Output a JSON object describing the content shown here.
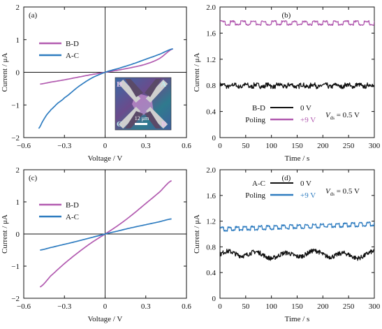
{
  "colors": {
    "purple": "#b25bb0",
    "blue": "#2e7cc0",
    "black": "#111111"
  },
  "chart_data": [
    {
      "panel": "(a)",
      "type": "line",
      "xlabel": "Voltage / V",
      "ylabel": "Current / μA",
      "xlim": [
        -0.6,
        0.6
      ],
      "ylim": [
        -2,
        2
      ],
      "xticks": [
        -0.6,
        -0.3,
        0,
        0.3,
        0.6
      ],
      "yticks": [
        -2,
        -1,
        0,
        1,
        2
      ],
      "xtick_labels": [
        "−0.6",
        "−0.3",
        "0",
        "0.3",
        "0.6"
      ],
      "ytick_labels": [
        "−2",
        "−1",
        "0",
        "1",
        "2"
      ],
      "legend_position": "top-left",
      "inset": {
        "labels": [
          "D",
          "A",
          "C",
          "B"
        ],
        "scale_bar": "12 μm"
      },
      "series": [
        {
          "name": "B-D",
          "color": "#b25bb0",
          "x": [
            -0.48,
            -0.4,
            -0.3,
            -0.2,
            -0.1,
            0,
            0.1,
            0.2,
            0.3,
            0.4,
            0.5
          ],
          "y": [
            -0.36,
            -0.3,
            -0.23,
            -0.15,
            -0.07,
            0,
            0.07,
            0.15,
            0.25,
            0.42,
            0.72
          ]
        },
        {
          "name": "A-C",
          "color": "#2e7cc0",
          "x": [
            -0.49,
            -0.46,
            -0.43,
            -0.4,
            -0.35,
            -0.3,
            -0.2,
            -0.1,
            0,
            0.1,
            0.2,
            0.3,
            0.4,
            0.5
          ],
          "y": [
            -1.72,
            -1.5,
            -1.3,
            -1.15,
            -0.95,
            -0.78,
            -0.45,
            -0.18,
            0,
            0.12,
            0.25,
            0.4,
            0.55,
            0.72
          ]
        }
      ]
    },
    {
      "panel": "(b)",
      "type": "line",
      "xlabel": "Time / s",
      "ylabel": "Current / μA",
      "xlim": [
        0,
        300
      ],
      "ylim": [
        0,
        2.0
      ],
      "xticks": [
        0,
        50,
        100,
        150,
        200,
        250,
        300
      ],
      "yticks": [
        0,
        0.4,
        0.8,
        1.2,
        1.6,
        2.0
      ],
      "xtick_labels": [
        "0",
        "50",
        "100",
        "150",
        "200",
        "250",
        "300"
      ],
      "ytick_labels": [
        "0",
        "0.4",
        "0.8",
        "1.2",
        "1.6",
        "2.0"
      ],
      "legend_position": "bottom-left",
      "legend_header": "B-D",
      "annotation": {
        "symbol": "V",
        "subscript": "ds",
        "value": " = 0.5 V"
      },
      "series": [
        {
          "name": "0 V",
          "row_label": "",
          "color": "#111111",
          "baseline": 0.78,
          "step": 0.03,
          "period": 22,
          "noise": 0.03
        },
        {
          "name": "+9 V",
          "row_label": "Poling",
          "color": "#b25bb0",
          "baseline": 1.73,
          "step": 0.05,
          "period": 20,
          "noise": 0.012
        }
      ]
    },
    {
      "panel": "(c)",
      "type": "line",
      "xlabel": "Voltage / V",
      "ylabel": "Current / μA",
      "xlim": [
        -0.6,
        0.6
      ],
      "ylim": [
        -2,
        2
      ],
      "xticks": [
        -0.6,
        -0.3,
        0,
        0.3,
        0.6
      ],
      "yticks": [
        -2,
        -1,
        0,
        1,
        2
      ],
      "xtick_labels": [
        "−0.6",
        "−0.3",
        "0",
        "0.3",
        "0.6"
      ],
      "ytick_labels": [
        "−2",
        "−1",
        "0",
        "1",
        "2"
      ],
      "legend_position": "top-left",
      "series": [
        {
          "name": "B-D",
          "color": "#b25bb0",
          "x": [
            -0.48,
            -0.4,
            -0.3,
            -0.2,
            -0.1,
            0,
            0.1,
            0.2,
            0.3,
            0.4,
            0.49
          ],
          "y": [
            -1.65,
            -1.3,
            -0.92,
            -0.58,
            -0.27,
            0,
            0.28,
            0.6,
            0.95,
            1.3,
            1.66
          ]
        },
        {
          "name": "A-C",
          "color": "#2e7cc0",
          "x": [
            -0.48,
            -0.4,
            -0.3,
            -0.2,
            -0.1,
            0,
            0.1,
            0.2,
            0.3,
            0.4,
            0.49
          ],
          "y": [
            -0.5,
            -0.42,
            -0.32,
            -0.22,
            -0.11,
            0,
            0.1,
            0.2,
            0.29,
            0.38,
            0.47
          ]
        }
      ]
    },
    {
      "panel": "(d)",
      "type": "line",
      "xlabel": "Time / s",
      "ylabel": "Current / μA",
      "xlim": [
        0,
        300
      ],
      "ylim": [
        0,
        2.0
      ],
      "xticks": [
        0,
        50,
        100,
        150,
        200,
        250,
        300
      ],
      "yticks": [
        0,
        0.4,
        0.8,
        1.2,
        1.6,
        2.0
      ],
      "xtick_labels": [
        "0",
        "50",
        "100",
        "150",
        "200",
        "250",
        "300"
      ],
      "ytick_labels": [
        "0",
        "0.4",
        "0.8",
        "1.2",
        "1.6",
        "2.0"
      ],
      "legend_position": "top-left",
      "legend_header": "A-C",
      "annotation": {
        "symbol": "V",
        "subscript": "ds",
        "value": " = 0.5 V"
      },
      "series": [
        {
          "name": "0 V",
          "row_label": "",
          "color": "#111111",
          "baseline": 0.68,
          "step": 0.0,
          "period": 0,
          "noise": 0.035,
          "wander": true
        },
        {
          "name": "+9 V",
          "row_label": "Poling",
          "color": "#2e7cc0",
          "baseline": 1.05,
          "trend": 0.08,
          "step": 0.05,
          "period": 15,
          "noise": 0.012
        }
      ]
    }
  ]
}
